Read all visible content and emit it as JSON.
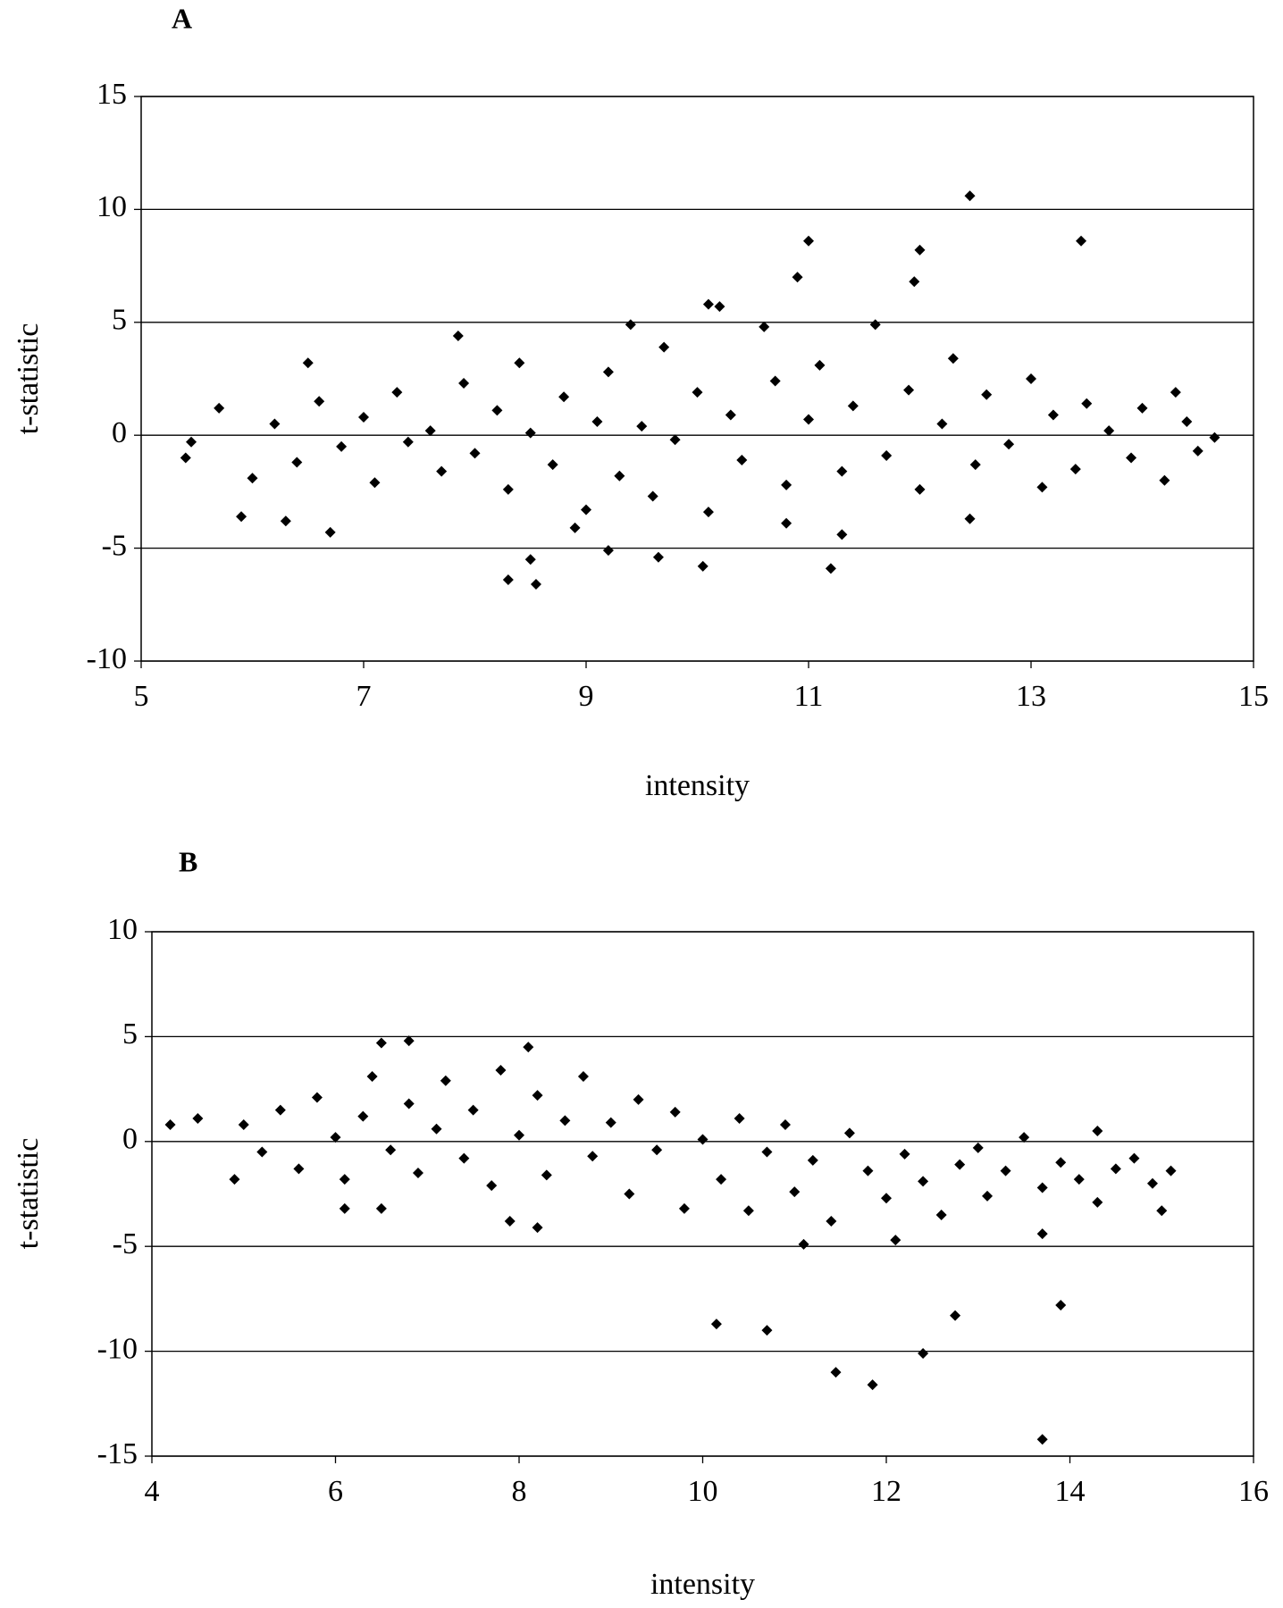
{
  "chart_data": [
    {
      "type": "scatter",
      "title": "A",
      "x_label": "intensity",
      "y_label": "t-statistic",
      "color": "#000000",
      "grid": true,
      "xlim": [
        5,
        15
      ],
      "ylim": [
        -10,
        15
      ],
      "xticks": [
        5,
        7,
        9,
        11,
        13,
        15
      ],
      "yticks": [
        -10,
        -5,
        0,
        5,
        10,
        15
      ],
      "x": [
        12.45,
        13.45,
        11.0,
        12.0,
        10.9,
        11.95,
        10.1,
        10.2,
        7.85,
        9.4,
        8.3,
        8.55,
        8.5,
        11.2,
        10.05,
        9.65,
        12.45,
        6.7,
        5.4,
        5.45,
        14.65,
        14.3,
        6.5,
        6.2,
        6.4,
        6.6,
        6.8,
        7.0,
        7.1,
        7.3,
        7.4,
        7.6,
        7.7,
        7.9,
        8.0,
        8.2,
        8.3,
        8.4,
        8.5,
        8.7,
        8.8,
        9.0,
        9.1,
        9.2,
        9.3,
        9.5,
        9.6,
        9.7,
        9.8,
        10.0,
        10.1,
        10.3,
        10.4,
        10.6,
        10.7,
        10.8,
        11.0,
        11.1,
        11.3,
        11.4,
        11.6,
        11.7,
        11.9,
        12.0,
        12.2,
        12.3,
        12.5,
        12.6,
        12.8,
        13.0,
        13.1,
        13.2,
        13.4,
        13.5,
        13.7,
        13.9,
        14.0,
        14.2,
        14.4,
        14.5,
        6.0,
        5.9,
        5.7,
        6.3,
        8.9,
        9.2,
        10.8,
        11.3
      ],
      "y": [
        10.6,
        8.6,
        8.6,
        8.2,
        7.0,
        6.8,
        5.8,
        5.7,
        4.4,
        4.9,
        -6.4,
        -6.6,
        -5.5,
        -5.9,
        -5.8,
        -5.4,
        -3.7,
        -4.3,
        -1.0,
        -0.3,
        -0.1,
        1.9,
        3.2,
        0.5,
        -1.2,
        1.5,
        -0.5,
        0.8,
        -2.1,
        1.9,
        -0.3,
        0.2,
        -1.6,
        2.3,
        -0.8,
        1.1,
        -2.4,
        3.2,
        0.1,
        -1.3,
        1.7,
        -3.3,
        0.6,
        2.8,
        -1.8,
        0.4,
        -2.7,
        3.9,
        -0.2,
        1.9,
        -3.4,
        0.9,
        -1.1,
        4.8,
        2.4,
        -2.2,
        0.7,
        3.1,
        -1.6,
        1.3,
        4.9,
        -0.9,
        2.0,
        -2.4,
        0.5,
        3.4,
        -1.3,
        1.8,
        -0.4,
        2.5,
        -2.3,
        0.9,
        -1.5,
        1.4,
        0.2,
        -1.0,
        1.2,
        -2.0,
        0.6,
        -0.7,
        -1.9,
        -3.6,
        1.2,
        -3.8,
        -4.1,
        -5.1,
        -3.9,
        -4.4
      ]
    },
    {
      "type": "scatter",
      "title": "B",
      "x_label": "intensity",
      "y_label": "t-statistic",
      "color": "#000000",
      "grid": true,
      "xlim": [
        4,
        16
      ],
      "ylim": [
        -15,
        10
      ],
      "xticks": [
        4,
        6,
        8,
        10,
        12,
        14,
        16
      ],
      "yticks": [
        -15,
        -10,
        -5,
        0,
        5,
        10
      ],
      "x": [
        10.15,
        10.7,
        11.45,
        11.85,
        12.4,
        12.75,
        13.9,
        13.7,
        4.2,
        15.0,
        15.1,
        6.8,
        6.5,
        8.1,
        7.9,
        8.2,
        11.1,
        12.1,
        13.7,
        14.3,
        5.0,
        5.2,
        5.4,
        5.6,
        5.8,
        6.0,
        6.1,
        6.3,
        6.4,
        6.6,
        6.8,
        6.9,
        7.1,
        7.2,
        7.4,
        7.5,
        7.7,
        7.8,
        8.0,
        8.2,
        8.3,
        8.5,
        8.7,
        8.8,
        9.0,
        9.2,
        9.3,
        9.5,
        9.7,
        9.8,
        10.0,
        10.2,
        10.4,
        10.5,
        10.7,
        10.9,
        11.0,
        11.2,
        11.4,
        11.6,
        11.8,
        12.0,
        12.2,
        12.4,
        12.6,
        12.8,
        13.0,
        13.1,
        13.3,
        13.5,
        13.7,
        13.9,
        14.1,
        14.3,
        14.5,
        14.7,
        14.9,
        4.5,
        4.9,
        6.5,
        6.1
      ],
      "y": [
        -8.7,
        -9.0,
        -11.0,
        -11.6,
        -10.1,
        -8.3,
        -7.8,
        -14.2,
        0.8,
        -3.3,
        -1.4,
        4.8,
        4.7,
        4.5,
        -3.8,
        -4.1,
        -4.9,
        -4.7,
        -4.4,
        0.5,
        0.8,
        -0.5,
        1.5,
        -1.3,
        2.1,
        0.2,
        -1.8,
        1.2,
        3.1,
        -0.4,
        1.8,
        -1.5,
        0.6,
        2.9,
        -0.8,
        1.5,
        -2.1,
        3.4,
        0.3,
        2.2,
        -1.6,
        1.0,
        3.1,
        -0.7,
        0.9,
        -2.5,
        2.0,
        -0.4,
        1.4,
        -3.2,
        0.1,
        -1.8,
        1.1,
        -3.3,
        -0.5,
        0.8,
        -2.4,
        -0.9,
        -3.8,
        0.4,
        -1.4,
        -2.7,
        -0.6,
        -1.9,
        -3.5,
        -1.1,
        -0.3,
        -2.6,
        -1.4,
        0.2,
        -2.2,
        -1.0,
        -1.8,
        -2.9,
        -1.3,
        -0.8,
        -2.0,
        1.1,
        -1.8,
        -3.2,
        -3.2
      ]
    }
  ]
}
